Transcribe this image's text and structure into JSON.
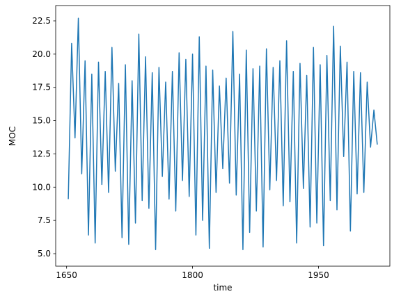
{
  "chart_data": {
    "type": "line",
    "xlabel": "time",
    "ylabel": "MOC",
    "x": [
      1652,
      1656,
      1660,
      1664,
      1668,
      1672,
      1676,
      1680,
      1684,
      1688,
      1692,
      1696,
      1700,
      1704,
      1708,
      1712,
      1716,
      1720,
      1724,
      1728,
      1732,
      1736,
      1740,
      1744,
      1748,
      1752,
      1756,
      1760,
      1764,
      1768,
      1772,
      1776,
      1780,
      1784,
      1788,
      1792,
      1796,
      1800,
      1804,
      1808,
      1812,
      1816,
      1820,
      1824,
      1828,
      1832,
      1836,
      1840,
      1844,
      1848,
      1852,
      1856,
      1860,
      1864,
      1868,
      1872,
      1876,
      1880,
      1884,
      1888,
      1892,
      1896,
      1900,
      1904,
      1908,
      1912,
      1916,
      1920,
      1924,
      1928,
      1932,
      1936,
      1940,
      1944,
      1948,
      1952,
      1956,
      1960,
      1964,
      1968,
      1972,
      1976,
      1980,
      1984,
      1988,
      1992,
      1996,
      2000,
      2004,
      2008,
      2012,
      2016,
      2020
    ],
    "series": [
      {
        "name": "MOC",
        "color": "#1f77b4",
        "values": [
          9.1,
          20.8,
          13.7,
          22.7,
          11.0,
          19.5,
          6.4,
          18.5,
          5.8,
          19.4,
          10.2,
          18.7,
          9.6,
          20.5,
          11.2,
          17.8,
          6.2,
          19.2,
          5.7,
          18.0,
          7.3,
          21.5,
          9.0,
          19.8,
          8.4,
          18.6,
          5.3,
          19.0,
          10.8,
          17.9,
          9.1,
          18.7,
          8.2,
          20.1,
          10.5,
          19.6,
          9.3,
          20.0,
          6.4,
          21.3,
          7.5,
          19.1,
          5.4,
          18.8,
          9.6,
          17.6,
          11.4,
          18.2,
          10.3,
          21.7,
          9.4,
          18.5,
          5.3,
          20.3,
          6.6,
          18.9,
          8.2,
          19.1,
          5.5,
          20.4,
          9.8,
          19.0,
          10.5,
          19.5,
          8.6,
          21.0,
          8.9,
          18.7,
          5.8,
          19.3,
          9.9,
          18.4,
          7.0,
          20.5,
          7.3,
          19.2,
          5.6,
          19.9,
          9.0,
          22.1,
          8.3,
          20.6,
          12.3,
          19.4,
          6.7,
          18.7,
          9.5,
          18.6,
          9.6,
          17.9,
          13.0,
          15.8,
          13.2
        ]
      }
    ],
    "xlim": [
      1637,
      2035
    ],
    "ylim": [
      4.06,
      23.65
    ],
    "xticks": [
      1650,
      1800,
      1950
    ],
    "yticks": [
      {
        "value": 5.0,
        "label": "5.0"
      },
      7.5,
      {
        "value": 10.0,
        "label": "10.0"
      },
      12.5,
      {
        "value": 15.0,
        "label": "15.0"
      },
      17.5,
      {
        "value": 20.0,
        "label": "20.0"
      },
      22.5
    ]
  }
}
